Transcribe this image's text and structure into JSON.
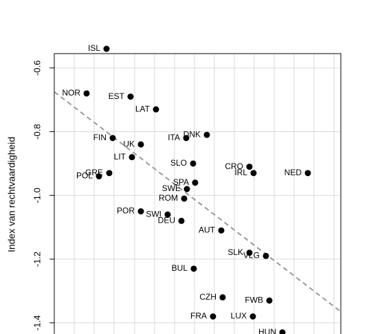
{
  "chart_data": {
    "type": "scatter",
    "title": "",
    "xlabel": "",
    "ylabel": "Index van rechtvaardigheid",
    "ylim": [
      -1.435,
      -0.555
    ],
    "yticks": [
      -1.4,
      -1.2,
      -1.0,
      -0.8,
      -0.6
    ],
    "ytick_labels": [
      "-1.4",
      "-1.2",
      "-1.0",
      "-0.8",
      "-0.6"
    ],
    "grid": true,
    "trendline": {
      "style": "dashed",
      "color": "#999999"
    },
    "points": [
      {
        "label": "ISL",
        "y": -0.54
      },
      {
        "label": "NOR",
        "y": -0.68
      },
      {
        "label": "EST",
        "y": -0.69
      },
      {
        "label": "LAT",
        "y": -0.73
      },
      {
        "label": "FIN",
        "y": -0.82
      },
      {
        "label": "UK",
        "y": -0.84
      },
      {
        "label": "ITA",
        "y": -0.82
      },
      {
        "label": "DNK",
        "y": -0.81
      },
      {
        "label": "LIT",
        "y": -0.88
      },
      {
        "label": "SLO",
        "y": -0.9
      },
      {
        "label": "CRO",
        "y": -0.91
      },
      {
        "label": "GRE",
        "y": -0.93
      },
      {
        "label": "POL",
        "y": -0.94
      },
      {
        "label": "IRL",
        "y": -0.93
      },
      {
        "label": "NED",
        "y": -0.93
      },
      {
        "label": "SPA",
        "y": -0.96
      },
      {
        "label": "SWE",
        "y": -0.98
      },
      {
        "label": "ROM",
        "y": -1.01
      },
      {
        "label": "POR",
        "y": -1.05
      },
      {
        "label": "SWI",
        "y": -1.06
      },
      {
        "label": "DEU",
        "y": -1.08
      },
      {
        "label": "AUT",
        "y": -1.11
      },
      {
        "label": "SLK",
        "y": -1.18
      },
      {
        "label": "VLG",
        "y": -1.19
      },
      {
        "label": "BUL",
        "y": -1.23
      },
      {
        "label": "CZH",
        "y": -1.32
      },
      {
        "label": "FWB",
        "y": -1.33
      },
      {
        "label": "FRA",
        "y": -1.38
      },
      {
        "label": "LUX",
        "y": -1.38
      },
      {
        "label": "HUN",
        "y": -1.43
      }
    ],
    "colors": {
      "point": "#000000",
      "grid": "#d9d9d9",
      "axis": "#000000",
      "trend": "#999999"
    }
  }
}
